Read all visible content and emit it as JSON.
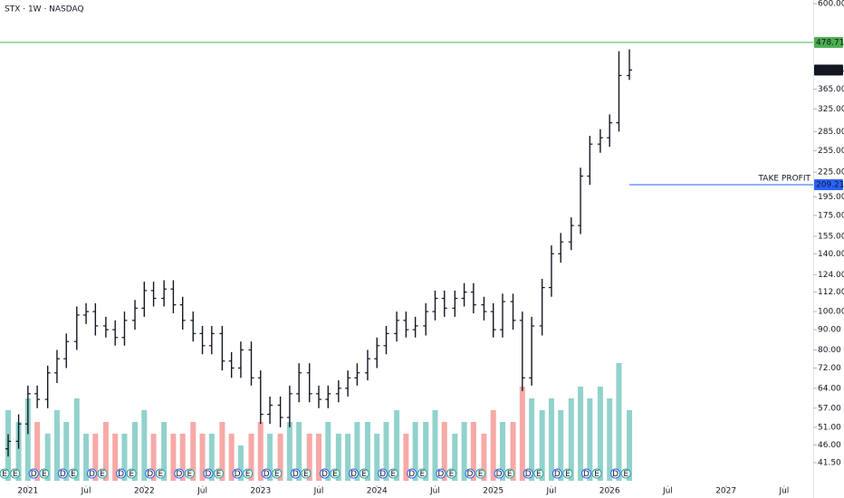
{
  "chart_data": {
    "type": "ohlc",
    "title": "STX · 1W · NASDAQ",
    "color": "#131722",
    "log_scale": true,
    "grid": false,
    "xlim": [
      2020.76,
      2027.75
    ],
    "ylim": [
      36,
      613
    ],
    "xticks": [
      {
        "value": 2021,
        "label": "2021"
      },
      {
        "value": 2021.5,
        "label": "Jul"
      },
      {
        "value": 2022,
        "label": "2022"
      },
      {
        "value": 2022.5,
        "label": "Jul"
      },
      {
        "value": 2023,
        "label": "2023"
      },
      {
        "value": 2023.5,
        "label": "Jul"
      },
      {
        "value": 2024,
        "label": "2024"
      },
      {
        "value": 2024.5,
        "label": "Jul"
      },
      {
        "value": 2025,
        "label": "2025"
      },
      {
        "value": 2025.5,
        "label": "Jul"
      },
      {
        "value": 2026,
        "label": "2026"
      },
      {
        "value": 2026.5,
        "label": "Jul"
      },
      {
        "value": 2027,
        "label": "2027"
      },
      {
        "value": 2027.5,
        "label": "Jul"
      }
    ],
    "yticks": [
      {
        "value": 41.5,
        "label": "41.50"
      },
      {
        "value": 46,
        "label": "46.00"
      },
      {
        "value": 51,
        "label": "51.00"
      },
      {
        "value": 57,
        "label": "57.00"
      },
      {
        "value": 64,
        "label": "64.00"
      },
      {
        "value": 72,
        "label": "72.00"
      },
      {
        "value": 80,
        "label": "80.00"
      },
      {
        "value": 90,
        "label": "90.00"
      },
      {
        "value": 100,
        "label": "100.00"
      },
      {
        "value": 112,
        "label": "112.00"
      },
      {
        "value": 124,
        "label": "124.00"
      },
      {
        "value": 140,
        "label": "140.00"
      },
      {
        "value": 155,
        "label": "155.00"
      },
      {
        "value": 175,
        "label": "175.00"
      },
      {
        "value": 195,
        "label": "195.00"
      },
      {
        "value": 225,
        "label": "225.00"
      },
      {
        "value": 255,
        "label": "255.00"
      },
      {
        "value": 285,
        "label": "285.00"
      },
      {
        "value": 325,
        "label": "325.00"
      },
      {
        "value": 365,
        "label": "365.00"
      },
      {
        "value": 600,
        "label": "600.00"
      }
    ],
    "x": [
      2020.83,
      2020.92,
      2021.0,
      2021.08,
      2021.17,
      2021.25,
      2021.33,
      2021.42,
      2021.5,
      2021.58,
      2021.67,
      2021.75,
      2021.83,
      2021.92,
      2022.0,
      2022.08,
      2022.17,
      2022.25,
      2022.33,
      2022.42,
      2022.5,
      2022.58,
      2022.67,
      2022.75,
      2022.83,
      2022.92,
      2023.0,
      2023.08,
      2023.17,
      2023.25,
      2023.33,
      2023.42,
      2023.5,
      2023.58,
      2023.67,
      2023.75,
      2023.83,
      2023.92,
      2024.0,
      2024.08,
      2024.17,
      2024.25,
      2024.33,
      2024.42,
      2024.5,
      2024.58,
      2024.67,
      2024.75,
      2024.83,
      2024.92,
      2025.0,
      2025.08,
      2025.17,
      2025.25,
      2025.33,
      2025.42,
      2025.5,
      2025.58,
      2025.67,
      2025.75,
      2025.83,
      2025.92,
      2026.0,
      2026.08,
      2026.17
    ],
    "open": [
      45,
      47,
      52,
      62,
      60,
      70,
      76,
      84,
      98,
      100,
      92,
      90,
      86,
      95,
      102,
      113,
      108,
      114,
      104,
      95,
      88,
      82,
      88,
      75,
      72,
      80,
      68,
      55,
      58,
      54,
      62,
      70,
      62,
      60,
      62,
      64,
      68,
      70,
      76,
      82,
      88,
      95,
      90,
      92,
      100,
      108,
      102,
      108,
      112,
      104,
      100,
      90,
      106,
      95,
      68,
      92,
      115,
      140,
      150,
      165,
      220,
      265,
      275,
      300,
      395
    ],
    "high": [
      49,
      55,
      65,
      65,
      73,
      80,
      88,
      103,
      105,
      105,
      97,
      95,
      100,
      107,
      119,
      119,
      120,
      120,
      109,
      100,
      92,
      92,
      92,
      79,
      84,
      84,
      71,
      61,
      61,
      65,
      74,
      74,
      65,
      65,
      67,
      71,
      74,
      80,
      86,
      92,
      100,
      100,
      97,
      105,
      113,
      113,
      113,
      118,
      118,
      109,
      105,
      111,
      111,
      100,
      97,
      121,
      147,
      158,
      173,
      231,
      278,
      289,
      315,
      455,
      460
    ],
    "low": [
      43,
      45,
      49,
      57,
      57,
      66,
      72,
      80,
      93,
      87,
      86,
      82,
      82,
      90,
      97,
      103,
      103,
      99,
      90,
      84,
      78,
      78,
      71,
      68,
      68,
      65,
      52,
      52,
      51,
      51,
      59,
      59,
      57,
      57,
      59,
      61,
      65,
      67,
      72,
      78,
      84,
      86,
      86,
      87,
      95,
      97,
      97,
      103,
      99,
      95,
      86,
      86,
      90,
      63,
      65,
      87,
      109,
      133,
      143,
      157,
      209,
      252,
      261,
      285,
      385
    ],
    "close": [
      47,
      52,
      62,
      60,
      70,
      76,
      84,
      98,
      100,
      92,
      90,
      86,
      95,
      102,
      113,
      108,
      114,
      104,
      95,
      88,
      82,
      88,
      75,
      72,
      80,
      68,
      55,
      58,
      54,
      62,
      70,
      62,
      60,
      62,
      64,
      68,
      70,
      76,
      82,
      88,
      95,
      90,
      92,
      100,
      108,
      102,
      108,
      112,
      104,
      100,
      90,
      106,
      95,
      68,
      92,
      115,
      140,
      150,
      165,
      220,
      265,
      275,
      300,
      395,
      407.84
    ],
    "volume": {
      "values": [
        6,
        5,
        7,
        5,
        4,
        6,
        5,
        7,
        4,
        4,
        5,
        4,
        4,
        5,
        6,
        4,
        5,
        4,
        4,
        5,
        4,
        4,
        5,
        4,
        3,
        4,
        5,
        4,
        4,
        5,
        5,
        4,
        4,
        5,
        4,
        4,
        5,
        5,
        4,
        5,
        6,
        4,
        5,
        5,
        6,
        5,
        4,
        5,
        5,
        4,
        6,
        5,
        5,
        8,
        7,
        6,
        7,
        6,
        7,
        8,
        7,
        8,
        7,
        10,
        6
      ],
      "ylim": [
        0,
        12
      ],
      "up_color": "#26a69a",
      "down_color": "#ef5350"
    },
    "lines": [
      {
        "value": 478.71,
        "color": "#4caf50"
      },
      {
        "value": 209.21,
        "color": "#2962ff",
        "text": "TAKE PROFIT"
      }
    ],
    "last_price": {
      "value": 407.84,
      "color": "#131722"
    },
    "events": {
      "x": [
        2020.8,
        2020.89,
        2021.05,
        2021.14,
        2021.3,
        2021.39,
        2021.55,
        2021.64,
        2021.8,
        2021.89,
        2022.05,
        2022.14,
        2022.3,
        2022.39,
        2022.55,
        2022.64,
        2022.8,
        2022.89,
        2023.05,
        2023.14,
        2023.3,
        2023.39,
        2023.55,
        2023.64,
        2023.8,
        2023.89,
        2024.05,
        2024.14,
        2024.3,
        2024.39,
        2024.55,
        2024.64,
        2024.8,
        2024.89,
        2025.05,
        2025.14,
        2025.3,
        2025.39,
        2025.55,
        2025.64,
        2025.8,
        2025.89,
        2026.05,
        2026.14
      ],
      "labels": [
        "E",
        "E",
        "D",
        "E",
        "D",
        "E",
        "D",
        "E",
        "D",
        "E",
        "D",
        "E",
        "D",
        "E",
        "D",
        "E",
        "D",
        "E",
        "D",
        "E",
        "D",
        "E",
        "D",
        "E",
        "D",
        "E",
        "D",
        "E",
        "D",
        "E",
        "D",
        "E",
        "D",
        "E",
        "D",
        "E",
        "D",
        "E",
        "D",
        "E",
        "D",
        "E",
        "D",
        "E"
      ]
    }
  }
}
